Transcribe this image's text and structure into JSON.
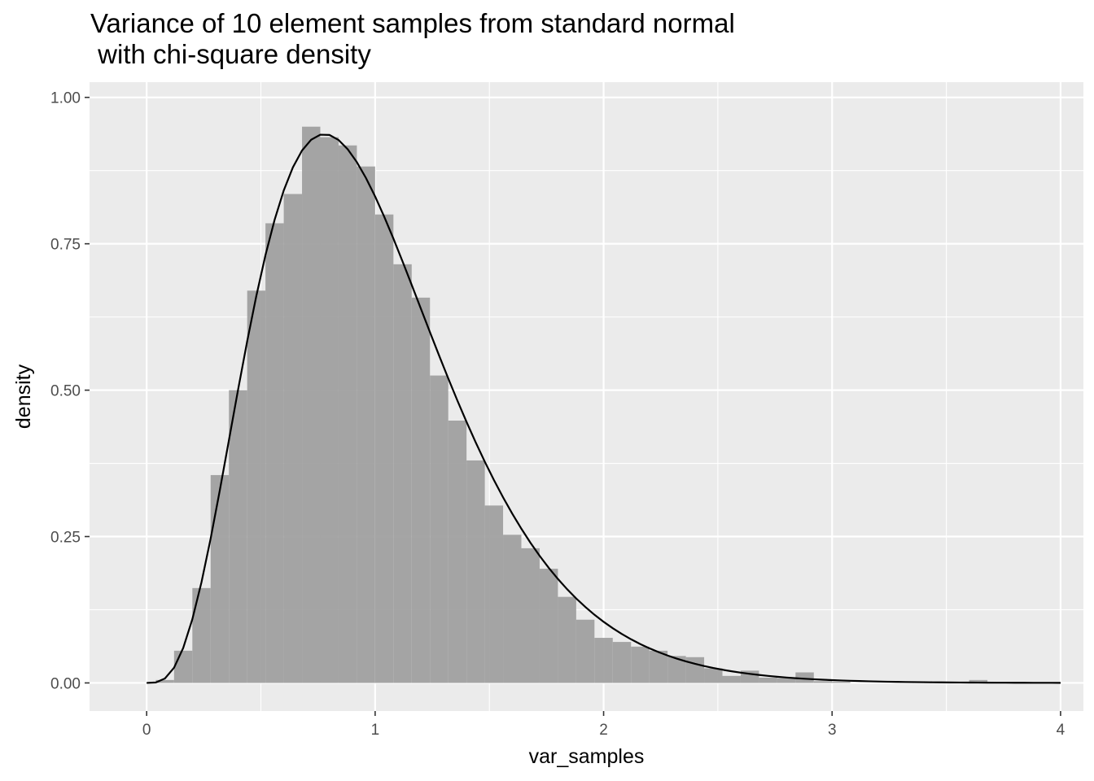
{
  "chart_data": {
    "type": "bar",
    "title": "Variance of 10 element samples from standard normal\n with chi-square density",
    "xlabel": "var_samples",
    "ylabel": "density",
    "xlim": [
      -0.25,
      4.1
    ],
    "ylim": [
      -0.048,
      1.026
    ],
    "x_ticks": [
      0,
      1,
      2,
      3,
      4
    ],
    "x_tick_labels": [
      "0",
      "1",
      "2",
      "3",
      "4"
    ],
    "y_ticks": [
      0,
      0.25,
      0.5,
      0.75,
      1.0
    ],
    "y_tick_labels": [
      "0.00",
      "0.25",
      "0.50",
      "0.75",
      "1.00"
    ],
    "grid": true,
    "histogram": {
      "bin_width": 0.08,
      "bins": [
        {
          "x0": 0.04,
          "value": 0.005
        },
        {
          "x0": 0.12,
          "value": 0.055
        },
        {
          "x0": 0.2,
          "value": 0.162
        },
        {
          "x0": 0.28,
          "value": 0.355
        },
        {
          "x0": 0.36,
          "value": 0.5
        },
        {
          "x0": 0.44,
          "value": 0.67
        },
        {
          "x0": 0.52,
          "value": 0.785
        },
        {
          "x0": 0.6,
          "value": 0.835
        },
        {
          "x0": 0.68,
          "value": 0.95
        },
        {
          "x0": 0.76,
          "value": 0.932
        },
        {
          "x0": 0.84,
          "value": 0.918
        },
        {
          "x0": 0.92,
          "value": 0.882
        },
        {
          "x0": 1.0,
          "value": 0.8
        },
        {
          "x0": 1.08,
          "value": 0.715
        },
        {
          "x0": 1.16,
          "value": 0.658
        },
        {
          "x0": 1.24,
          "value": 0.525
        },
        {
          "x0": 1.32,
          "value": 0.448
        },
        {
          "x0": 1.4,
          "value": 0.38
        },
        {
          "x0": 1.48,
          "value": 0.303
        },
        {
          "x0": 1.56,
          "value": 0.253
        },
        {
          "x0": 1.64,
          "value": 0.23
        },
        {
          "x0": 1.72,
          "value": 0.195
        },
        {
          "x0": 1.8,
          "value": 0.147
        },
        {
          "x0": 1.88,
          "value": 0.108
        },
        {
          "x0": 1.96,
          "value": 0.077
        },
        {
          "x0": 2.04,
          "value": 0.07
        },
        {
          "x0": 2.12,
          "value": 0.062
        },
        {
          "x0": 2.2,
          "value": 0.055
        },
        {
          "x0": 2.28,
          "value": 0.046
        },
        {
          "x0": 2.36,
          "value": 0.044
        },
        {
          "x0": 2.44,
          "value": 0.025
        },
        {
          "x0": 2.52,
          "value": 0.012
        },
        {
          "x0": 2.6,
          "value": 0.021
        },
        {
          "x0": 2.68,
          "value": 0.009
        },
        {
          "x0": 2.76,
          "value": 0.008
        },
        {
          "x0": 2.84,
          "value": 0.018
        },
        {
          "x0": 2.92,
          "value": 0.003
        },
        {
          "x0": 3.0,
          "value": 0.002
        },
        {
          "x0": 3.6,
          "value": 0.005
        }
      ]
    },
    "density_curve": {
      "df": 9,
      "scale": 0.1111,
      "x_range": [
        0,
        4
      ],
      "color": "#000000"
    },
    "colors": {
      "panel_background": "#ebebeb",
      "grid": "#ffffff",
      "bar_fill": "#a0a0a0"
    }
  }
}
